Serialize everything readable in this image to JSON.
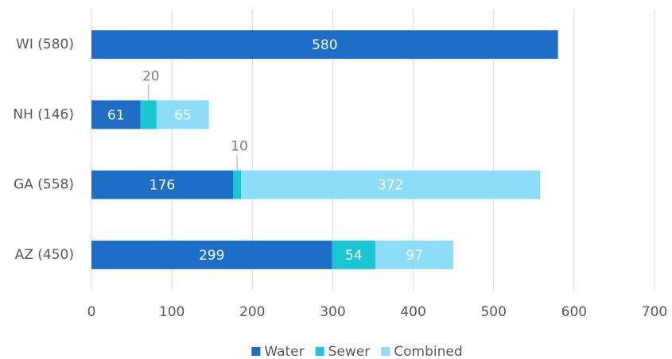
{
  "chart_data": {
    "type": "bar",
    "orientation": "horizontal",
    "stacked": true,
    "categories": [
      "WI (580)",
      "NH (146)",
      "GA (558)",
      "AZ (450)"
    ],
    "series": [
      {
        "name": "Water",
        "color": "#1e6ec8",
        "values": [
          580,
          61,
          176,
          299
        ]
      },
      {
        "name": "Sewer",
        "color": "#19c6d4",
        "values": [
          null,
          20,
          10,
          54
        ]
      },
      {
        "name": "Combined",
        "color": "#8ddcf8",
        "values": [
          null,
          65,
          372,
          97
        ]
      }
    ],
    "xlim": [
      0,
      700
    ],
    "xticks": [
      0,
      100,
      200,
      300,
      400,
      500,
      600,
      700
    ],
    "grid": true,
    "legend": "bottom"
  }
}
